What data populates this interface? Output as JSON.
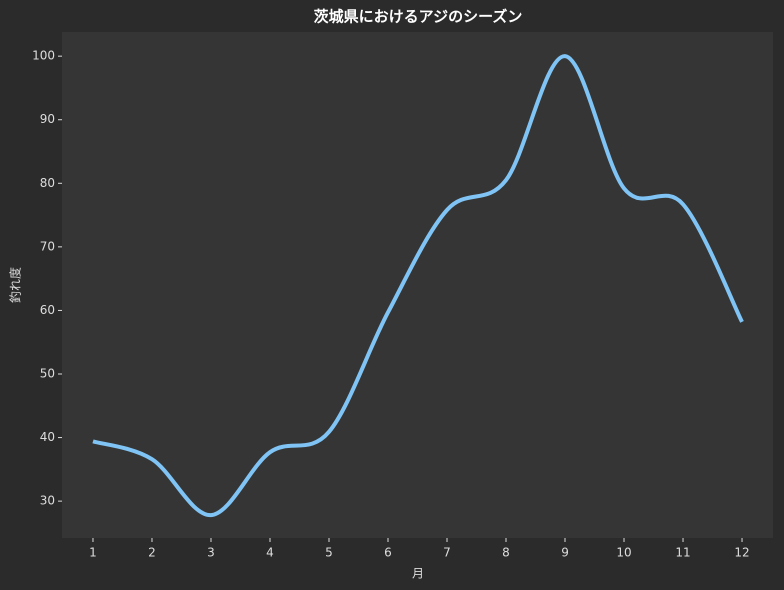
{
  "chart_data": {
    "type": "line",
    "title": "茨城県におけるアジのシーズン",
    "x_label": "月",
    "y_label": "釣れ度",
    "x": [
      1,
      2,
      3,
      4,
      5,
      6,
      7,
      8,
      9,
      10,
      11,
      12
    ],
    "series": [
      {
        "name": "アジ",
        "color": "#7fc4f5",
        "values": [
          39.4,
          36.6,
          27.8,
          37.7,
          40.9,
          59.7,
          75.8,
          80.5,
          100,
          79.2,
          76.7,
          58.2
        ]
      }
    ],
    "xlim": [
      0.475,
      12.525
    ],
    "ylim": [
      24.2,
      103.8
    ],
    "xticks": [
      1,
      2,
      3,
      4,
      5,
      6,
      7,
      8,
      9,
      10,
      11,
      12
    ],
    "yticks": [
      30,
      40,
      50,
      60,
      70,
      80,
      90,
      100
    ],
    "smooth": true,
    "grid": false
  }
}
